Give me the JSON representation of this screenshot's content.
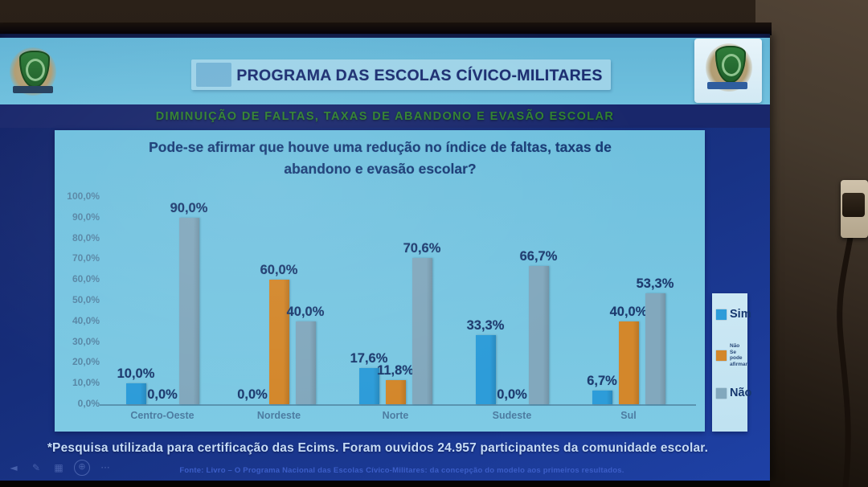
{
  "screen": {
    "header": {
      "title": "PROGRAMA DAS ESCOLAS CÍVICO-MILITARES"
    },
    "band_title": "DIMINUIÇÃO DE FALTAS, TAXAS DE ABANDONO E EVASÃO ESCOLAR",
    "footnote": "*Pesquisa utilizada para certificação das Ecims. Foram ouvidos 24.957 participantes da comunidade escolar.",
    "source": "Fonte: Livro – O Programa Nacional das Escolas Cívico-Militares: da concepção do modelo aos primeiros resultados.",
    "legend": {
      "sim": "Sim",
      "nao": "Não",
      "nao_se_pode_lines": [
        "Não",
        "Se pode",
        "afirmar"
      ]
    },
    "controls": {
      "items": [
        {
          "name": "previous-slide",
          "glyph": "◄",
          "circled": false
        },
        {
          "name": "pen",
          "glyph": "✎",
          "circled": false
        },
        {
          "name": "see-all-slides",
          "glyph": "▦",
          "circled": false
        },
        {
          "name": "zoom",
          "glyph": "⊕",
          "circled": true
        },
        {
          "name": "more-options",
          "glyph": "···",
          "circled": false
        }
      ]
    }
  },
  "chart_data": {
    "type": "bar",
    "title": "Pode-se afirmar que houve uma redução no índice de faltas, taxas de abandono e evasão escolar?",
    "categories": [
      "Centro-Oeste",
      "Nordeste",
      "Norte",
      "Sudeste",
      "Sul"
    ],
    "series": [
      {
        "name": "Sim",
        "color": "#2d9cd9",
        "values": [
          10.0,
          0.0,
          17.6,
          33.3,
          6.7
        ],
        "labels": [
          "10,0%",
          "0,0%",
          "17,6%",
          "33,3%",
          "6,7%"
        ]
      },
      {
        "name": "Não Se pode afirmar",
        "color": "#d3872b",
        "values": [
          0.0,
          60.0,
          11.8,
          0.0,
          40.0
        ],
        "labels": [
          "0,0%",
          "60,0%",
          "11,8%",
          "0,0%",
          "40,0%"
        ]
      },
      {
        "name": "Não",
        "color": "#82a8bd",
        "values": [
          90.0,
          40.0,
          70.6,
          66.7,
          53.3
        ],
        "labels": [
          "90,0%",
          "40,0%",
          "70,6%",
          "66,7%",
          "53,3%"
        ]
      }
    ],
    "ylim": [
      0,
      100
    ],
    "yticks": [
      "0,0%",
      "10,0%",
      "20,0%",
      "30,0%",
      "40,0%",
      "50,0%",
      "60,0%",
      "70,0%",
      "80,0%",
      "90,0%",
      "100,0%"
    ],
    "ylabel": "",
    "xlabel": "",
    "grid": false,
    "legend_position": "right"
  },
  "colors": {
    "slide_background_top": "#122368",
    "slide_background_bottom": "#1e41a6",
    "chart_panel": "#74c3e0",
    "header_band": "#6abcdb",
    "navy_band": "#19276b",
    "band_title_green": "#2f8030",
    "header_title_navy": "#1b2d71",
    "data_label_navy": "#1d3a6e",
    "axis_label": "#55809f",
    "footnote_text": "#c6dcf6",
    "source_text": "#3c5ec8",
    "legend_panel": "#cde8f4"
  }
}
